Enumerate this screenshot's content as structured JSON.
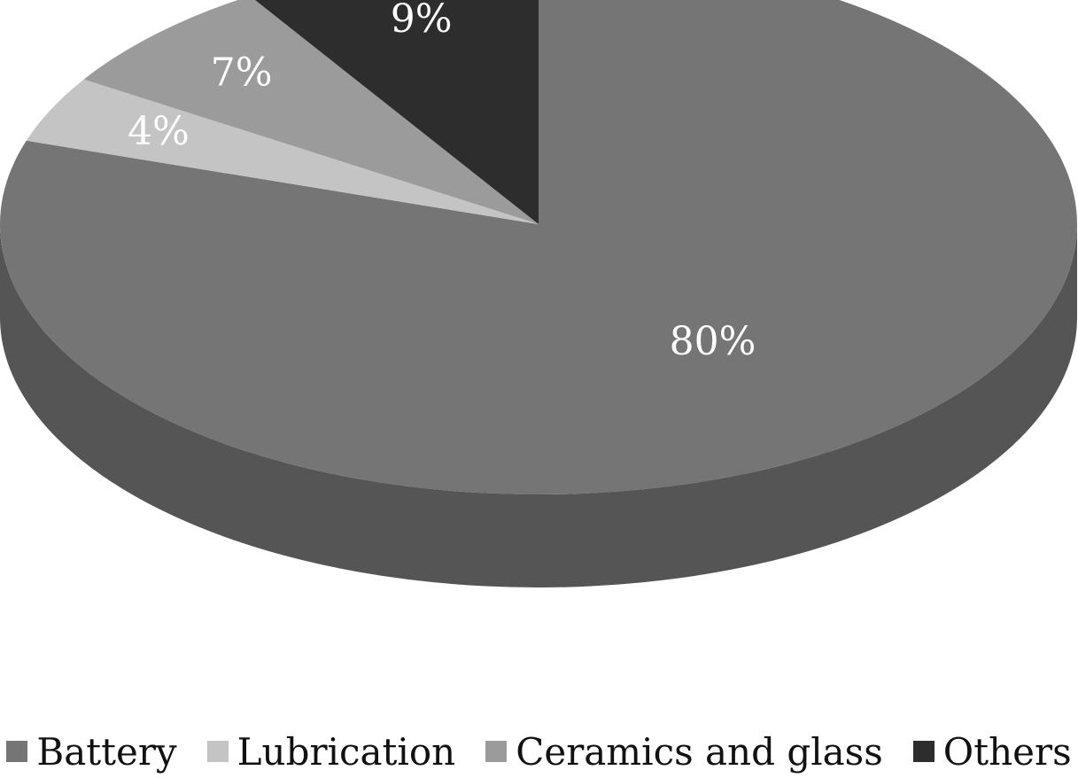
{
  "chart_data": {
    "type": "pie",
    "style": "3d",
    "categories": [
      "Battery",
      "Lubrication",
      "Ceramics and glass",
      "Others"
    ],
    "values": [
      80,
      4,
      7,
      9
    ],
    "data_labels": [
      "80%",
      "4%",
      "7%",
      "9%"
    ],
    "colors": [
      "#757575",
      "#c4c4c4",
      "#9b9b9b",
      "#2d2d2d"
    ],
    "side_colors": [
      "#555555",
      "#8f8f8f",
      "#6f6f6f",
      "#1c1c1c"
    ],
    "legend_position": "bottom",
    "start_angle_deg": 0,
    "direction": "clockwise"
  }
}
